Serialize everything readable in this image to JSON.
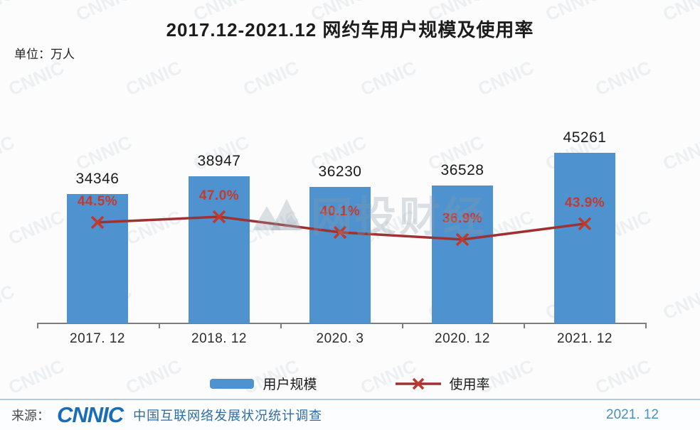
{
  "title": "2017.12-2021.12 网约车用户规模及使用率",
  "unit_label": "单位：万人",
  "chart_data": {
    "type": "bar",
    "categories": [
      "2017. 12",
      "2018. 12",
      "2020. 3",
      "2020. 12",
      "2021. 12"
    ],
    "series": [
      {
        "name": "用户规模",
        "type": "bar",
        "values": [
          34346,
          38947,
          36230,
          36528,
          45261
        ],
        "color": "#4e93cf",
        "unit": "万人"
      },
      {
        "name": "使用率",
        "type": "line",
        "values": [
          44.5,
          47.0,
          40.1,
          36.9,
          43.9
        ],
        "labels": [
          "44.5%",
          "47.0%",
          "40.1%",
          "36.9%",
          "43.9%"
        ],
        "line_color": "#9e3233",
        "marker_color": "#c0392b",
        "label_color": "#c23b2f",
        "unit": "%"
      }
    ],
    "title": "2017.12-2021.12 网约车用户规模及使用率",
    "xlabel": "",
    "ylabel": "单位：万人",
    "ylim": [
      0,
      50000
    ],
    "grid": false,
    "legend_position": "bottom"
  },
  "legend": {
    "bar_label": "用户规模",
    "line_label": "使用率"
  },
  "watermark": {
    "tile_text": "CNNIC",
    "center_text": "网投财经"
  },
  "footer": {
    "source_prefix": "来源：",
    "logo_text": "CNNIC",
    "source_text": "中国互联网络发展状况统计调查",
    "date": "2021. 12"
  }
}
